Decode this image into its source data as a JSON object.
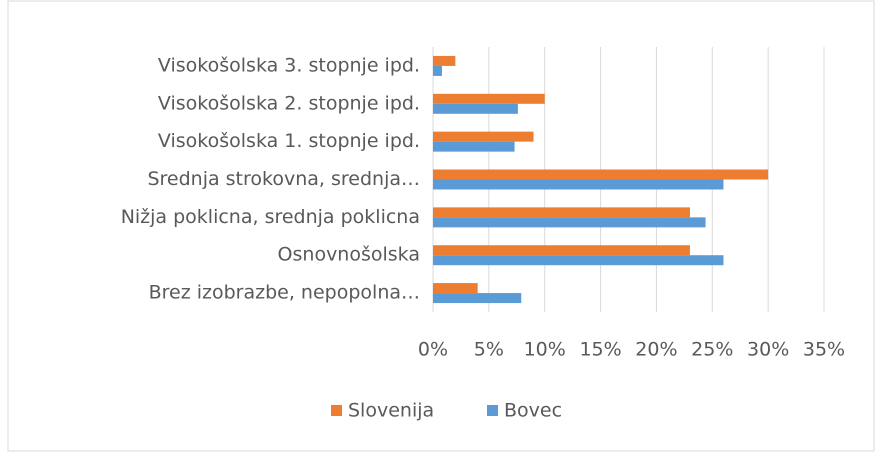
{
  "chart_data": {
    "type": "barh",
    "categories": [
      "Visokošolska 3. stopnje ipd.",
      "Visokošolska 2. stopnje ipd.",
      "Visokošolska 1. stopnje ipd.",
      "Srednja strokovna, srednja…",
      "Nižja poklicna, srednja poklicna",
      "Osnovnošolska",
      "Brez izobrazbe, nepopolna…"
    ],
    "series": [
      {
        "name": "Slovenija",
        "color": "#ed7d31",
        "values": [
          2.0,
          10.0,
          9.0,
          30.0,
          23.0,
          23.0,
          4.0
        ]
      },
      {
        "name": "Bovec",
        "color": "#5b9bd5",
        "values": [
          0.8,
          7.6,
          7.3,
          26.0,
          24.4,
          26.0,
          7.9
        ]
      }
    ],
    "xlim": [
      0,
      35
    ],
    "xticks": [
      {
        "value": 0,
        "label": "0%"
      },
      {
        "value": 5,
        "label": "5%"
      },
      {
        "value": 10,
        "label": "10%"
      },
      {
        "value": 15,
        "label": "15%"
      },
      {
        "value": 20,
        "label": "20%"
      },
      {
        "value": 25,
        "label": "25%"
      },
      {
        "value": 30,
        "label": "30%"
      },
      {
        "value": 35,
        "label": "35%"
      }
    ],
    "grid": true,
    "legend": "bottom"
  }
}
